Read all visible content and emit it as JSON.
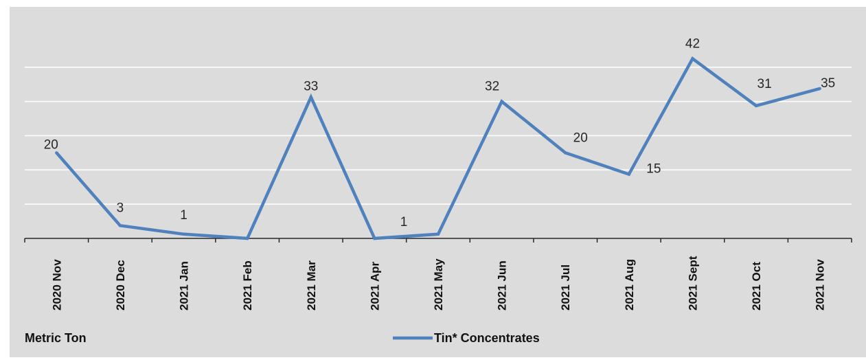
{
  "chart_data": {
    "type": "line",
    "categories": [
      "2020 Nov",
      "2020 Dec",
      "2021 Jan",
      "2021 Feb",
      "2021 Mar",
      "2021 Apr",
      "2021 May",
      "2021 Jun",
      "2021 Jul",
      "2021 Aug",
      "2021 Sept",
      "2021 Oct",
      "2021 Nov"
    ],
    "series": [
      {
        "name": "Tin* Concentrates",
        "values": [
          20,
          3,
          1,
          0,
          33,
          0,
          1,
          32,
          20,
          15,
          42,
          31,
          35
        ],
        "labels": [
          "20",
          "3",
          "1",
          "",
          "33",
          "",
          "1",
          "32",
          "20",
          "15",
          "42",
          "31",
          "35"
        ],
        "color": "#4f81bd"
      }
    ],
    "title": "",
    "xlabel": "",
    "ylabel": "",
    "unit_label": "Metric Ton",
    "ylim": [
      0,
      48
    ],
    "gridlines": [
      8,
      16,
      24,
      32,
      40
    ],
    "grid": true,
    "legend_position": "bottom-center",
    "colors": {
      "background": "#dcdcdc",
      "grid": "#ffffff",
      "line": "#4f81bd",
      "axis": "#262626"
    }
  }
}
